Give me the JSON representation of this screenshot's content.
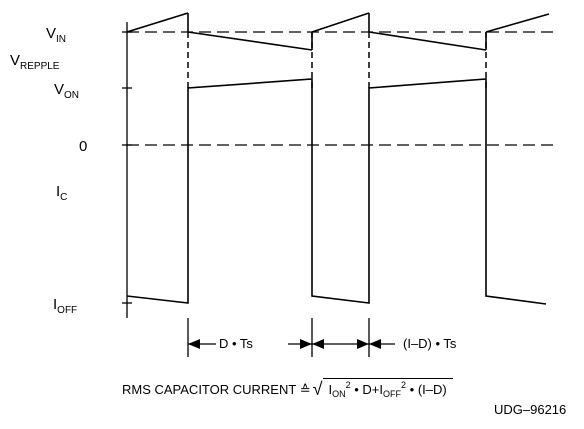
{
  "labels": {
    "v_in": {
      "main": "V",
      "sub": "IN"
    },
    "v_ripple": {
      "main": "V",
      "sub": "REPPLE"
    },
    "v_on": {
      "main": "V",
      "sub": "ON"
    },
    "zero": "0",
    "i_c": {
      "main": "I",
      "sub": "C"
    },
    "i_off": {
      "main": "I",
      "sub": "OFF"
    }
  },
  "timing": {
    "d_ts": "D • Ts",
    "one_minus_d_ts": "(I–D) • Ts"
  },
  "formula": {
    "prefix": "RMS CAPACITOR CURRENT",
    "equals": "≙",
    "i_on_main": "I",
    "i_on_sub": "ON",
    "pow1": "2",
    "mid1": " • D+",
    "i_off_main": "I",
    "i_off_sub": "OFF",
    "pow2": "2",
    "tail": " • (I–D)"
  },
  "figure_id": "UDG–96216"
}
